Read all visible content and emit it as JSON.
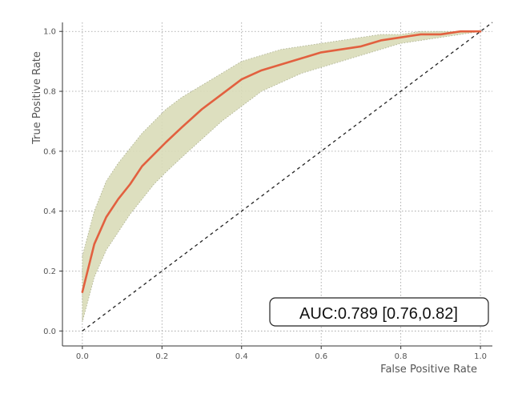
{
  "chart_data": {
    "type": "line",
    "xlabel": "False Positive Rate",
    "ylabel": "True Positive Rate",
    "xlim": [
      -0.05,
      1.03
    ],
    "ylim": [
      -0.05,
      1.03
    ],
    "x_ticks": [
      0.0,
      0.2,
      0.4,
      0.6,
      0.8,
      1.0
    ],
    "y_ticks": [
      0.0,
      0.2,
      0.4,
      0.6,
      0.8,
      1.0
    ],
    "x_tick_labels": [
      "0.0",
      "0.2",
      "0.4",
      "0.6",
      "0.8",
      "1.0"
    ],
    "y_tick_labels": [
      "0.0",
      "0.2",
      "0.4",
      "0.6",
      "0.8",
      "1.0"
    ],
    "grid": true,
    "series": [
      {
        "color": "#e2603f",
        "x": [
          0.0,
          0.03,
          0.06,
          0.09,
          0.12,
          0.15,
          0.18,
          0.21,
          0.25,
          0.3,
          0.35,
          0.4,
          0.45,
          0.5,
          0.55,
          0.6,
          0.65,
          0.7,
          0.75,
          0.8,
          0.85,
          0.9,
          0.95,
          1.0
        ],
        "y": [
          0.13,
          0.29,
          0.38,
          0.44,
          0.49,
          0.55,
          0.59,
          0.63,
          0.68,
          0.74,
          0.79,
          0.84,
          0.87,
          0.89,
          0.91,
          0.93,
          0.94,
          0.95,
          0.97,
          0.98,
          0.99,
          0.99,
          1.0,
          1.0
        ]
      }
    ],
    "confidence_band": {
      "color": "#d9dcb8",
      "x": [
        0.0,
        0.03,
        0.06,
        0.09,
        0.12,
        0.15,
        0.18,
        0.21,
        0.25,
        0.3,
        0.35,
        0.4,
        0.45,
        0.5,
        0.55,
        0.6,
        0.65,
        0.7,
        0.75,
        0.8,
        0.85,
        0.9,
        0.95,
        1.0
      ],
      "lower": [
        0.03,
        0.18,
        0.27,
        0.33,
        0.39,
        0.44,
        0.49,
        0.53,
        0.58,
        0.64,
        0.7,
        0.75,
        0.8,
        0.83,
        0.86,
        0.88,
        0.9,
        0.92,
        0.94,
        0.96,
        0.97,
        0.98,
        0.99,
        1.0
      ],
      "upper": [
        0.25,
        0.4,
        0.5,
        0.56,
        0.61,
        0.66,
        0.7,
        0.74,
        0.78,
        0.82,
        0.86,
        0.9,
        0.92,
        0.94,
        0.95,
        0.96,
        0.97,
        0.98,
        0.99,
        0.99,
        1.0,
        1.0,
        1.0,
        1.0
      ]
    },
    "reference_line": {
      "x": [
        0.0,
        1.0
      ],
      "y": [
        0.0,
        1.0
      ],
      "style": "dashed",
      "color": "#222222"
    },
    "annotation": "AUC:0.789 [0.76,0.82]"
  }
}
